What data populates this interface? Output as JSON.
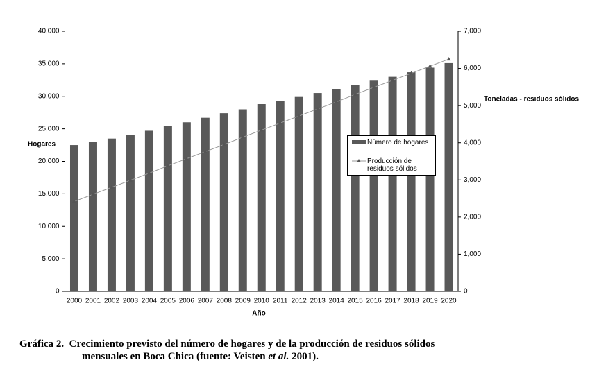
{
  "chart_data": {
    "type": "bar-line",
    "categories": [
      "2000",
      "2001",
      "2002",
      "2003",
      "2004",
      "2005",
      "2006",
      "2007",
      "2008",
      "2009",
      "2010",
      "2011",
      "2012",
      "2013",
      "2014",
      "2015",
      "2016",
      "2017",
      "2018",
      "2019",
      "2020"
    ],
    "series": [
      {
        "name": "Número de hogares",
        "type": "bar",
        "color": "#595959",
        "values": [
          22500,
          23000,
          23500,
          24100,
          24700,
          25400,
          26000,
          26700,
          27400,
          28000,
          28800,
          29300,
          29900,
          30500,
          31100,
          31700,
          32400,
          33000,
          33700,
          34400,
          35100
        ]
      },
      {
        "name": "Producción de residuos sólidos",
        "type": "line",
        "axis": "y2",
        "color": "#999999",
        "values": [
          2420,
          2610,
          2800,
          2990,
          3180,
          3380,
          3570,
          3760,
          3950,
          4150,
          4340,
          4530,
          4720,
          4910,
          5100,
          5300,
          5490,
          5680,
          5870,
          6060,
          6250
        ]
      }
    ],
    "ylabel": "Hogares",
    "y2label": "Toneladas - residuos sólidos",
    "xlabel": "Año",
    "ylim": [
      0,
      40000
    ],
    "yticks": [
      0,
      {
        "value": 5000,
        "label": "5,000"
      },
      {
        "value": 10000,
        "label": "10,000"
      },
      {
        "value": 15000,
        "label": "15,000"
      },
      {
        "value": 20000,
        "label": "20,000"
      },
      {
        "value": 25000,
        "label": "25,000"
      },
      {
        "value": 30000,
        "label": "30,000"
      },
      {
        "value": 35000,
        "label": "35,000"
      },
      {
        "value": 40000,
        "label": "40,000"
      }
    ],
    "y2lim": [
      0,
      7000
    ],
    "y2ticks": [
      0,
      {
        "value": 1000,
        "label": "1,000"
      },
      {
        "value": 2000,
        "label": "2,000"
      },
      {
        "value": 3000,
        "label": "3,000"
      },
      {
        "value": 4000,
        "label": "4,000"
      },
      {
        "value": 5000,
        "label": "5,000"
      },
      {
        "value": 6000,
        "label": "6,000"
      },
      {
        "value": 7000,
        "label": "7,000"
      }
    ],
    "grid": false,
    "legend": "right"
  },
  "caption": {
    "label": "Gráfica 2.",
    "line1": "Crecimiento previsto del número de hogares y de la producción de residuos sólidos",
    "line2_before": "mensuales en Boca Chica (fuente: Veisten ",
    "line2_italic": "et al.",
    "line2_after": " 2001)."
  }
}
